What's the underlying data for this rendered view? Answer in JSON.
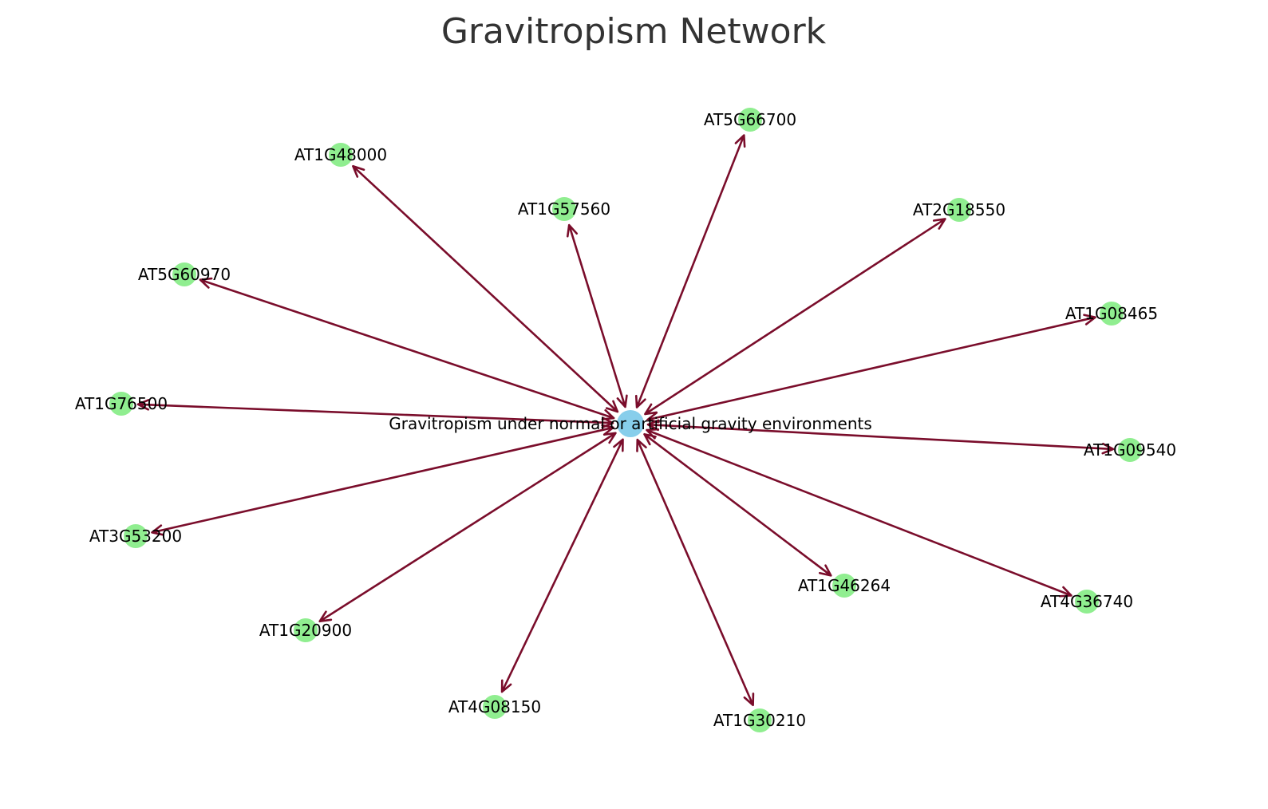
{
  "title": "Gravitropism Network",
  "colors": {
    "edge": "#7a0d2b",
    "gene_node": "#90ee90",
    "center_node": "#87ceeb"
  },
  "network": {
    "center": {
      "id": "center",
      "label": "Gravitropism under normal or artificial gravity environments"
    },
    "genes": [
      {
        "id": "AT5G66700",
        "label": "AT5G66700"
      },
      {
        "id": "AT1G48000",
        "label": "AT1G48000"
      },
      {
        "id": "AT1G57560",
        "label": "AT1G57560"
      },
      {
        "id": "AT2G18550",
        "label": "AT2G18550"
      },
      {
        "id": "AT5G60970",
        "label": "AT5G60970"
      },
      {
        "id": "AT1G08465",
        "label": "AT1G08465"
      },
      {
        "id": "AT1G76500",
        "label": "AT1G76500"
      },
      {
        "id": "AT1G09540",
        "label": "AT1G09540"
      },
      {
        "id": "AT3G53200",
        "label": "AT3G53200"
      },
      {
        "id": "AT1G46264",
        "label": "AT1G46264"
      },
      {
        "id": "AT4G36740",
        "label": "AT4G36740"
      },
      {
        "id": "AT1G20900",
        "label": "AT1G20900"
      },
      {
        "id": "AT4G08150",
        "label": "AT4G08150"
      },
      {
        "id": "AT1G30210",
        "label": "AT1G30210"
      }
    ],
    "edge_type": "bidirectional"
  }
}
